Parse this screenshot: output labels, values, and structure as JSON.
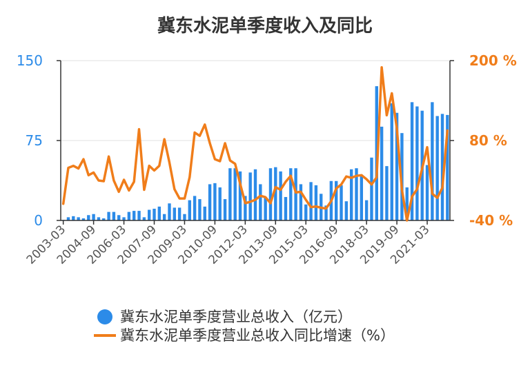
{
  "chart_data": {
    "type": "bar+line",
    "title": "冀东水泥单季度收入及同比",
    "x_tick_labels": [
      "2003-03",
      "2004-09",
      "2006-03",
      "2007-09",
      "2009-03",
      "2010-09",
      "2012-03",
      "2013-09",
      "2015-03",
      "2016-09",
      "2018-03",
      "2019-09",
      "2021-03"
    ],
    "left_axis": {
      "ylim": [
        0,
        150
      ],
      "ticks": [
        "0",
        "75",
        "150"
      ],
      "color": "#2c8be8"
    },
    "right_axis": {
      "ylim": [
        -40,
        200
      ],
      "ticks": [
        "-40 %",
        "80 %",
        "200 %"
      ],
      "color": "#f07d1a"
    },
    "grid": true,
    "legend_position": "bottom",
    "series": [
      {
        "name": "冀东水泥单季度营业总收入（亿元）",
        "type": "bar",
        "color": "#2c8be8",
        "axis": "left",
        "values": [
          0.5,
          3,
          4,
          3,
          2,
          5,
          6,
          3,
          2,
          8,
          8,
          5,
          3,
          8,
          9,
          9,
          3,
          10,
          11,
          13,
          6,
          16,
          12,
          12,
          6,
          19,
          23,
          20,
          13,
          34,
          35,
          31,
          20,
          49,
          49,
          46,
          23,
          45,
          48,
          34,
          22,
          49,
          50,
          46,
          22,
          49,
          49,
          34,
          15,
          36,
          33,
          25,
          14,
          37,
          37,
          33,
          18,
          48,
          49,
          43,
          19,
          59,
          126,
          88,
          51,
          110,
          101,
          82,
          31,
          111,
          107,
          103,
          52,
          111,
          98,
          100,
          99
        ]
      },
      {
        "name": "冀东水泥单季度营业总收入同比增速（%）",
        "type": "line",
        "color": "#f07d1a",
        "axis": "right",
        "values": [
          -15,
          39,
          42,
          38,
          52,
          28,
          32,
          20,
          19,
          56,
          20,
          3,
          21,
          5,
          18,
          97,
          6,
          42,
          35,
          42,
          82,
          47,
          7,
          -7,
          -7,
          25,
          92,
          87,
          104,
          76,
          52,
          49,
          76,
          50,
          45,
          15,
          -14,
          -12,
          -9,
          -3,
          -5,
          -14,
          10,
          6,
          18,
          27,
          2,
          3,
          -9,
          -20,
          -19,
          -21,
          -22,
          -11,
          8,
          14,
          26,
          24,
          27,
          28,
          22,
          14,
          25,
          190,
          118,
          151,
          98,
          6,
          -40,
          -4,
          7,
          38,
          70,
          0,
          -6,
          9,
          95
        ]
      }
    ]
  }
}
